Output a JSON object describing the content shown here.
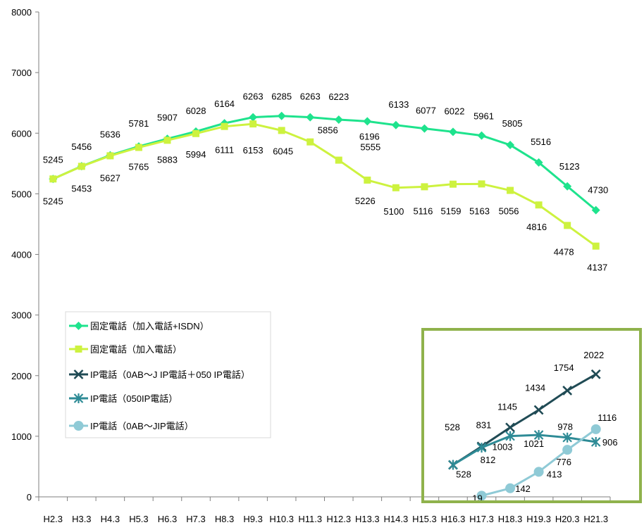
{
  "chart_data": {
    "type": "line",
    "categories": [
      "H2.3",
      "H3.3",
      "H4.3",
      "H5.3",
      "H6.3",
      "H7.3",
      "H8.3",
      "H9.3",
      "H10.3",
      "H11.3",
      "H12.3",
      "H13.3",
      "H14.3",
      "H15.3",
      "H16.3",
      "H17.3",
      "H18.3",
      "H19.3",
      "H20.3",
      "H21.3"
    ],
    "ylim": [
      0,
      8000
    ],
    "yticks": [
      0,
      1000,
      2000,
      3000,
      4000,
      5000,
      6000,
      7000,
      8000
    ],
    "grid": false,
    "legend_position": "bottom-left",
    "highlight_color": "#8fb24c",
    "series": [
      {
        "name": "固定電話（加入電話+ISDN）",
        "color": "#1ee38d",
        "marker": "diamond",
        "values": [
          5245,
          5456,
          5636,
          5781,
          5907,
          6028,
          6164,
          6263,
          6285,
          6263,
          6223,
          6196,
          6133,
          6077,
          6022,
          5961,
          5805,
          5516,
          5123,
          4730
        ]
      },
      {
        "name": "固定電話（加入電話）",
        "color": "#cdf23f",
        "marker": "square",
        "values": [
          5245,
          5453,
          5627,
          5765,
          5883,
          5994,
          6111,
          6153,
          6045,
          5856,
          5555,
          5226,
          5100,
          5116,
          5159,
          5163,
          5056,
          4816,
          4478,
          4137
        ]
      },
      {
        "name": "IP電話（0AB～J IP電話＋050 IP電話）",
        "color": "#204b55",
        "marker": "x",
        "values": [
          null,
          null,
          null,
          null,
          null,
          null,
          null,
          null,
          null,
          null,
          null,
          null,
          null,
          null,
          528,
          831,
          1145,
          1434,
          1754,
          2022
        ]
      },
      {
        "name": "IP電話（050IP電話）",
        "color": "#2e8b96",
        "marker": "asterisk",
        "values": [
          null,
          null,
          null,
          null,
          null,
          null,
          null,
          null,
          null,
          null,
          null,
          null,
          null,
          null,
          528,
          812,
          1003,
          1021,
          978,
          906
        ]
      },
      {
        "name": "IP電話（0AB～JIP電話）",
        "color": "#8fcad6",
        "marker": "circle",
        "values": [
          null,
          null,
          null,
          null,
          null,
          null,
          null,
          null,
          null,
          null,
          null,
          null,
          null,
          null,
          null,
          19,
          142,
          413,
          776,
          1116
        ]
      }
    ]
  }
}
